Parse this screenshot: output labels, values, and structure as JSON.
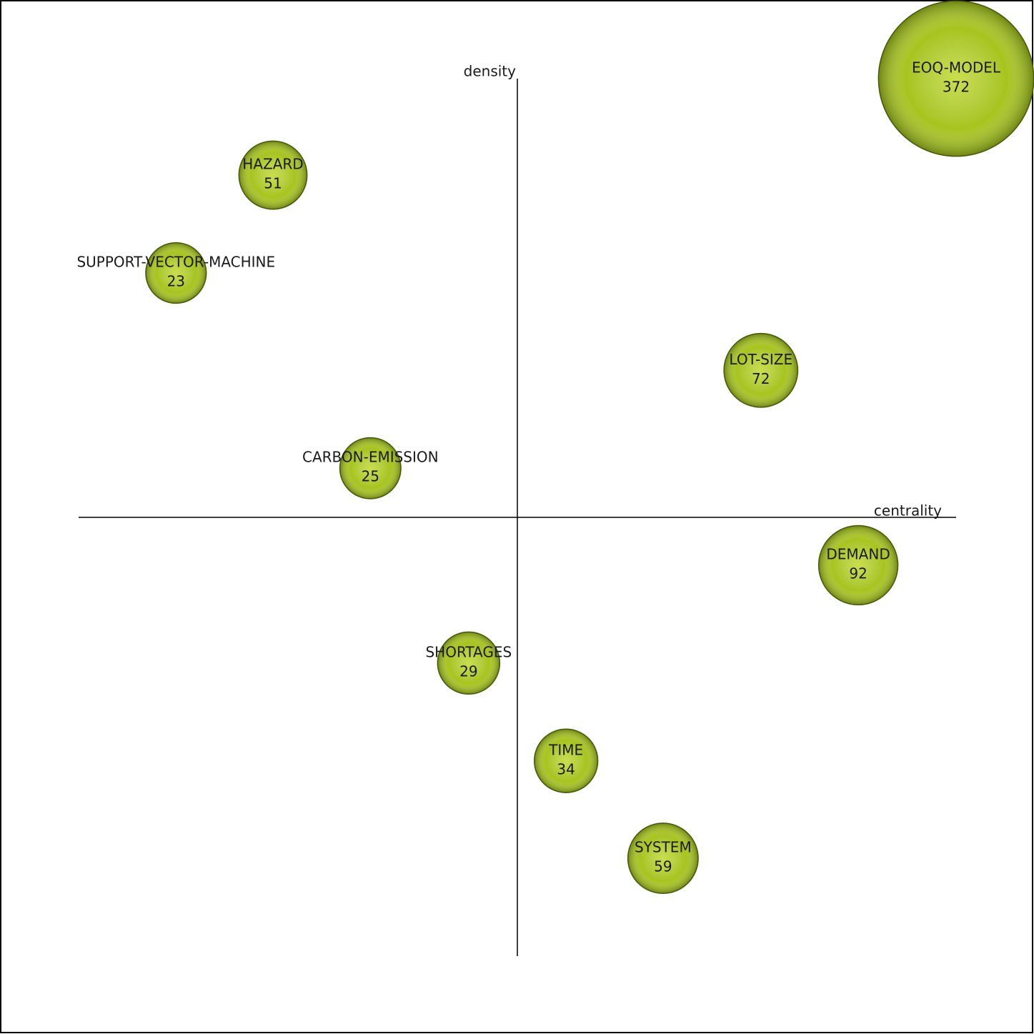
{
  "chart_data": {
    "type": "bubble",
    "x_label": "centrality",
    "y_label": "density",
    "categories": [
      "EOQ-MODEL",
      "HAZARD",
      "SUPPORT-VECTOR-MACHINE",
      "LOT-SIZE",
      "CARBON-EMISSION",
      "DEMAND",
      "SHORTAGES",
      "TIME",
      "SYSTEM"
    ],
    "x": [
      1.0,
      -0.557,
      -0.778,
      0.555,
      -0.335,
      0.777,
      -0.111,
      0.111,
      0.332
    ],
    "y": [
      1.0,
      0.78,
      0.557,
      0.335,
      0.112,
      -0.109,
      -0.332,
      -0.555,
      -0.777
    ],
    "sizes": [
      372,
      51,
      23,
      72,
      25,
      92,
      29,
      34,
      59
    ],
    "xlim": [
      -1,
      1
    ],
    "ylim": [
      -1,
      1
    ],
    "color": "#a6c41e"
  }
}
